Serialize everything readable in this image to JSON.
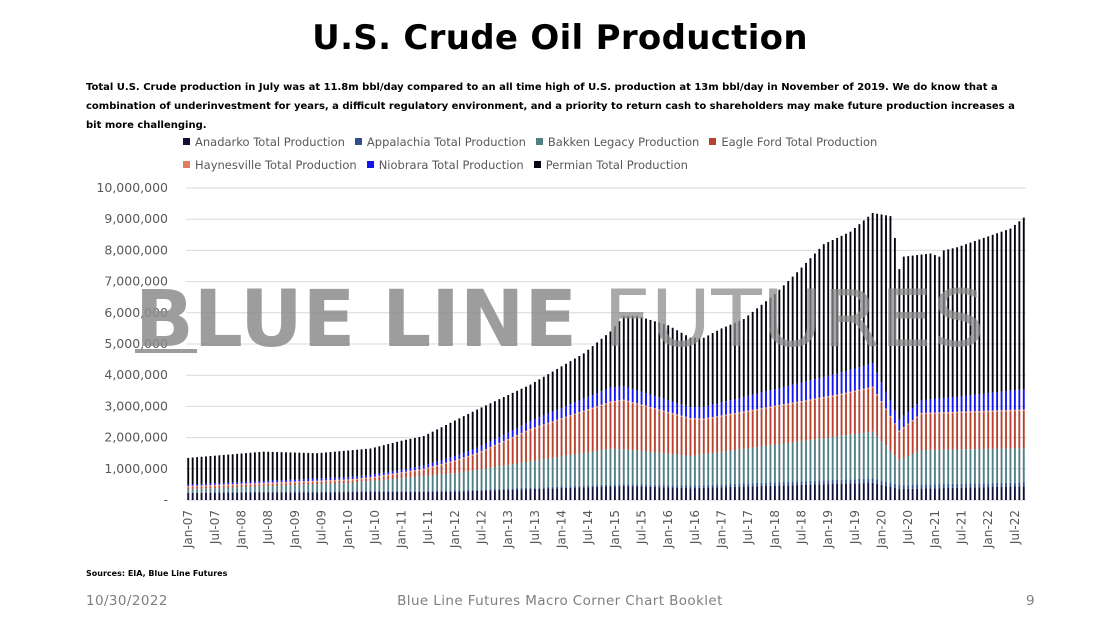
{
  "slide": {
    "title": "U.S. Crude Oil Production",
    "subtitle": "Total U.S. Crude production in July was at 11.8m bbl/day compared to an all time high of U.S. production at 13m bbl/day in November of 2019. We do know that a combination of underinvestment for years, a difficult regulatory environment, and a priority to return cash to shareholders may make future production increases a bit more challenging.",
    "watermark_left": "BLUE LINE",
    "watermark_right": "FUTURES",
    "sources": "Sources: EIA, Blue Line Futures",
    "footer_date": "10/30/2022",
    "footer_center": "Blue Line Futures Macro Corner Chart Booklet",
    "page_number": "9"
  },
  "chart_data": {
    "type": "bar",
    "stacked": true,
    "x_start": "2007-01",
    "x_end": "2022-09",
    "x_tick_labels": [
      "Jan-07",
      "Jul-07",
      "Jan-08",
      "Jul-08",
      "Jan-09",
      "Jul-09",
      "Jan-10",
      "Jul-10",
      "Jan-11",
      "Jul-11",
      "Jan-12",
      "Jul-12",
      "Jan-13",
      "Jul-13",
      "Jan-14",
      "Jul-14",
      "Jan-15",
      "Jul-15",
      "Jan-16",
      "Jul-16",
      "Jan-17",
      "Jul-17",
      "Jan-18",
      "Jul-18",
      "Jan-19",
      "Jul-19",
      "Jan-20",
      "Jul-20",
      "Jan-21",
      "Jul-21",
      "Jan-22",
      "Jul-22"
    ],
    "y_tick_labels": [
      "-",
      "1,000,000",
      "2,000,000",
      "3,000,000",
      "4,000,000",
      "5,000,000",
      "6,000,000",
      "7,000,000",
      "8,000,000",
      "9,000,000",
      "10,000,000"
    ],
    "ylim": [
      0,
      10000000
    ],
    "grid": true,
    "legend_position": "top",
    "total_keypoints": {
      "months": [
        "2007-01",
        "2008-06",
        "2009-06",
        "2010-06",
        "2011-01",
        "2011-06",
        "2012-06",
        "2013-06",
        "2014-06",
        "2014-12",
        "2015-03",
        "2015-06",
        "2016-01",
        "2016-06",
        "2016-09",
        "2017-01",
        "2017-06",
        "2018-01",
        "2018-06",
        "2018-12",
        "2019-06",
        "2019-11",
        "2020-03",
        "2020-04",
        "2020-05",
        "2020-06",
        "2020-12",
        "2021-02",
        "2021-03",
        "2021-06",
        "2021-12",
        "2022-06",
        "2022-09"
      ],
      "values": [
        1350000,
        1550000,
        1500000,
        1650000,
        1900000,
        2050000,
        2900000,
        3700000,
        4700000,
        5400000,
        5900000,
        5900000,
        5600000,
        5200000,
        5200000,
        5500000,
        5800000,
        6600000,
        7300000,
        8200000,
        8600000,
        9200000,
        9100000,
        8400000,
        7400000,
        7800000,
        7900000,
        7800000,
        8000000,
        8100000,
        8400000,
        8700000,
        9050000
      ]
    },
    "series": [
      {
        "name": "Anadarko Total Production",
        "color": "#0f0f3a",
        "keypoints": [
          [
            "2007-01",
            230000
          ],
          [
            "2012-01",
            270000
          ],
          [
            "2015-03",
            450000
          ],
          [
            "2016-06",
            380000
          ],
          [
            "2019-11",
            550000
          ],
          [
            "2020-05",
            350000
          ],
          [
            "2022-09",
            440000
          ]
        ]
      },
      {
        "name": "Appalachia Total Production",
        "color": "#2e4f8a",
        "keypoints": [
          [
            "2007-01",
            20000
          ],
          [
            "2012-01",
            35000
          ],
          [
            "2015-03",
            60000
          ],
          [
            "2019-11",
            140000
          ],
          [
            "2022-09",
            120000
          ]
        ]
      },
      {
        "name": "Bakken Legacy Production",
        "color": "#4f7f83",
        "keypoints": [
          [
            "2007-01",
            100000
          ],
          [
            "2010-01",
            260000
          ],
          [
            "2012-01",
            550000
          ],
          [
            "2014-12",
            1150000
          ],
          [
            "2016-06",
            950000
          ],
          [
            "2019-11",
            1500000
          ],
          [
            "2020-05",
            800000
          ],
          [
            "2020-10",
            1100000
          ],
          [
            "2022-09",
            1100000
          ]
        ]
      },
      {
        "name": "Eagle Ford Total Production",
        "color": "#b5422e",
        "keypoints": [
          [
            "2007-01",
            60000
          ],
          [
            "2010-06",
            80000
          ],
          [
            "2011-06",
            200000
          ],
          [
            "2012-06",
            500000
          ],
          [
            "2013-06",
            1000000
          ],
          [
            "2015-03",
            1550000
          ],
          [
            "2016-09",
            1100000
          ],
          [
            "2019-03",
            1300000
          ],
          [
            "2019-11",
            1400000
          ],
          [
            "2020-05",
            900000
          ],
          [
            "2020-10",
            1150000
          ],
          [
            "2022-09",
            1200000
          ]
        ]
      },
      {
        "name": "Haynesville Total Production",
        "color": "#e37b62",
        "keypoints": [
          [
            "2007-01",
            40000
          ],
          [
            "2022-09",
            40000
          ]
        ]
      },
      {
        "name": "Niobrara Total Production",
        "color": "#1414f0",
        "keypoints": [
          [
            "2007-01",
            50000
          ],
          [
            "2011-01",
            80000
          ],
          [
            "2013-01",
            200000
          ],
          [
            "2014-12",
            450000
          ],
          [
            "2016-06",
            350000
          ],
          [
            "2019-11",
            750000
          ],
          [
            "2020-05",
            350000
          ],
          [
            "2022-09",
            650000
          ]
        ]
      },
      {
        "name": "Permian Total Production",
        "color": "#05050f"
      }
    ]
  }
}
